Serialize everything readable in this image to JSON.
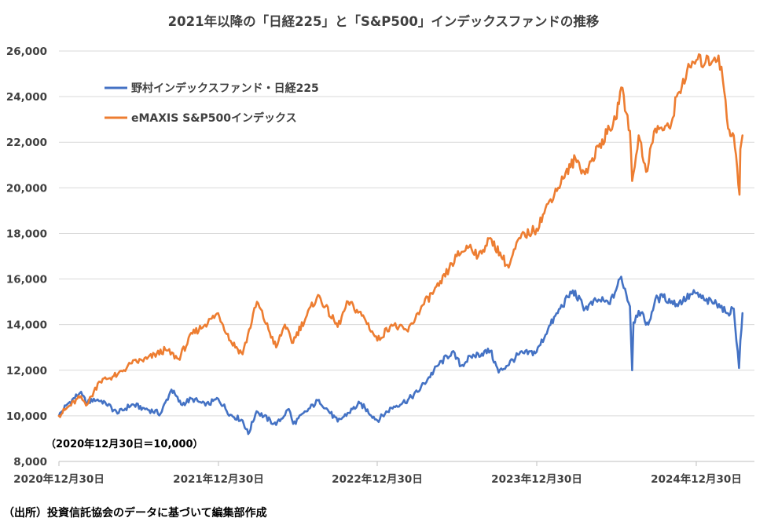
{
  "chart_data": {
    "type": "line",
    "title": "2021年以降の「日経225」と「S&P500」インデックスファンドの推移",
    "xlabel": "",
    "ylabel": "",
    "ylim": [
      8000,
      26000
    ],
    "y_ticks": [
      8000,
      10000,
      12000,
      14000,
      16000,
      18000,
      20000,
      22000,
      24000,
      26000
    ],
    "y_tick_labels": [
      "8,000",
      "10,000",
      "12,000",
      "14,000",
      "16,000",
      "18,000",
      "20,000",
      "22,000",
      "24,000",
      "26,000"
    ],
    "x_ticks": [
      "2020年12月30日",
      "2021年12月30日",
      "2022年12月30日",
      "2023年12月30日",
      "2024年12月30日"
    ],
    "x_range": [
      "2020-12-30",
      "2025-04-15"
    ],
    "grid": "horizontal",
    "legend_position": "top-left",
    "annotation": "（2020年12月30日＝10,000）",
    "source_note": "（出所）投資信託協会のデータに基づいて編集部作成",
    "series": [
      {
        "name": "野村インデックスファンド・日経225",
        "color": "#4472c4",
        "points": [
          [
            "2020-12-30",
            10000
          ],
          [
            "2021-01-15",
            10450
          ],
          [
            "2021-02-16",
            11000
          ],
          [
            "2021-03-05",
            10550
          ],
          [
            "2021-03-20",
            10750
          ],
          [
            "2021-04-15",
            10600
          ],
          [
            "2021-05-13",
            10100
          ],
          [
            "2021-06-15",
            10500
          ],
          [
            "2021-07-10",
            10350
          ],
          [
            "2021-08-20",
            10100
          ],
          [
            "2021-09-14",
            11150
          ],
          [
            "2021-10-06",
            10500
          ],
          [
            "2021-11-01",
            10750
          ],
          [
            "2021-12-01",
            10450
          ],
          [
            "2021-12-30",
            10750
          ],
          [
            "2022-01-27",
            10050
          ],
          [
            "2022-02-24",
            9800
          ],
          [
            "2022-03-09",
            9200
          ],
          [
            "2022-03-28",
            10200
          ],
          [
            "2022-05-12",
            9600
          ],
          [
            "2022-06-10",
            10300
          ],
          [
            "2022-06-20",
            9650
          ],
          [
            "2022-08-18",
            10700
          ],
          [
            "2022-09-30",
            9750
          ],
          [
            "2022-11-20",
            10550
          ],
          [
            "2022-12-30",
            9800
          ],
          [
            "2023-01-31",
            10350
          ],
          [
            "2023-03-10",
            10700
          ],
          [
            "2023-04-01",
            11050
          ],
          [
            "2023-05-20",
            12250
          ],
          [
            "2023-06-19",
            12800
          ],
          [
            "2023-07-10",
            12200
          ],
          [
            "2023-08-01",
            12600
          ],
          [
            "2023-09-15",
            12850
          ],
          [
            "2023-10-04",
            11900
          ],
          [
            "2023-11-20",
            12700
          ],
          [
            "2023-12-30",
            12800
          ],
          [
            "2024-01-25",
            13800
          ],
          [
            "2024-02-22",
            14700
          ],
          [
            "2024-03-22",
            15500
          ],
          [
            "2024-04-19",
            14700
          ],
          [
            "2024-05-20",
            15100
          ],
          [
            "2024-06-15",
            14900
          ],
          [
            "2024-07-11",
            16100
          ],
          [
            "2024-07-31",
            14800
          ],
          [
            "2024-08-05",
            12000
          ],
          [
            "2024-08-08",
            14100
          ],
          [
            "2024-08-20",
            14600
          ],
          [
            "2024-09-11",
            14000
          ],
          [
            "2024-09-27",
            15100
          ],
          [
            "2024-10-15",
            15200
          ],
          [
            "2024-11-15",
            14900
          ],
          [
            "2024-12-27",
            15400
          ],
          [
            "2025-01-20",
            15050
          ],
          [
            "2025-02-20",
            14900
          ],
          [
            "2025-03-10",
            14500
          ],
          [
            "2025-03-26",
            14700
          ],
          [
            "2025-04-07",
            12100
          ],
          [
            "2025-04-10",
            13300
          ],
          [
            "2025-04-15",
            14500
          ]
        ]
      },
      {
        "name": "eMAXIS S&P500インデックス",
        "color": "#ed7d31",
        "points": [
          [
            "2020-12-30",
            10000
          ],
          [
            "2021-01-15",
            10300
          ],
          [
            "2021-02-16",
            10800
          ],
          [
            "2021-03-05",
            10500
          ],
          [
            "2021-04-01",
            11500
          ],
          [
            "2021-05-13",
            11800
          ],
          [
            "2021-06-15",
            12300
          ],
          [
            "2021-07-20",
            12500
          ],
          [
            "2021-08-31",
            12900
          ],
          [
            "2021-09-30",
            12500
          ],
          [
            "2021-11-01",
            13600
          ],
          [
            "2021-11-30",
            14000
          ],
          [
            "2021-12-30",
            14500
          ],
          [
            "2022-01-27",
            13300
          ],
          [
            "2022-02-24",
            12700
          ],
          [
            "2022-03-29",
            15000
          ],
          [
            "2022-05-12",
            13000
          ],
          [
            "2022-06-01",
            14000
          ],
          [
            "2022-06-17",
            13200
          ],
          [
            "2022-08-16",
            15300
          ],
          [
            "2022-09-30",
            13900
          ],
          [
            "2022-10-24",
            15000
          ],
          [
            "2022-11-30",
            14300
          ],
          [
            "2022-12-30",
            13300
          ],
          [
            "2023-01-31",
            14000
          ],
          [
            "2023-03-10",
            13700
          ],
          [
            "2023-04-10",
            14800
          ],
          [
            "2023-05-20",
            15700
          ],
          [
            "2023-06-30",
            17000
          ],
          [
            "2023-07-31",
            17500
          ],
          [
            "2023-08-18",
            17000
          ],
          [
            "2023-09-15",
            17800
          ],
          [
            "2023-10-27",
            16500
          ],
          [
            "2023-11-20",
            17800
          ],
          [
            "2023-12-30",
            18200
          ],
          [
            "2024-01-31",
            19500
          ],
          [
            "2024-02-29",
            20400
          ],
          [
            "2024-03-28",
            21300
          ],
          [
            "2024-04-19",
            20600
          ],
          [
            "2024-05-20",
            21800
          ],
          [
            "2024-06-28",
            23000
          ],
          [
            "2024-07-11",
            24400
          ],
          [
            "2024-07-31",
            22500
          ],
          [
            "2024-08-05",
            20300
          ],
          [
            "2024-08-20",
            22300
          ],
          [
            "2024-09-06",
            20700
          ],
          [
            "2024-09-27",
            22600
          ],
          [
            "2024-10-31",
            22600
          ],
          [
            "2024-11-15",
            24000
          ],
          [
            "2024-12-15",
            25300
          ],
          [
            "2024-12-30",
            25600
          ],
          [
            "2025-01-20",
            25500
          ],
          [
            "2025-02-19",
            25800
          ],
          [
            "2025-03-01",
            24700
          ],
          [
            "2025-03-13",
            22600
          ],
          [
            "2025-03-26",
            22300
          ],
          [
            "2025-04-08",
            19700
          ],
          [
            "2025-04-10",
            21700
          ],
          [
            "2025-04-15",
            22300
          ]
        ]
      }
    ]
  }
}
